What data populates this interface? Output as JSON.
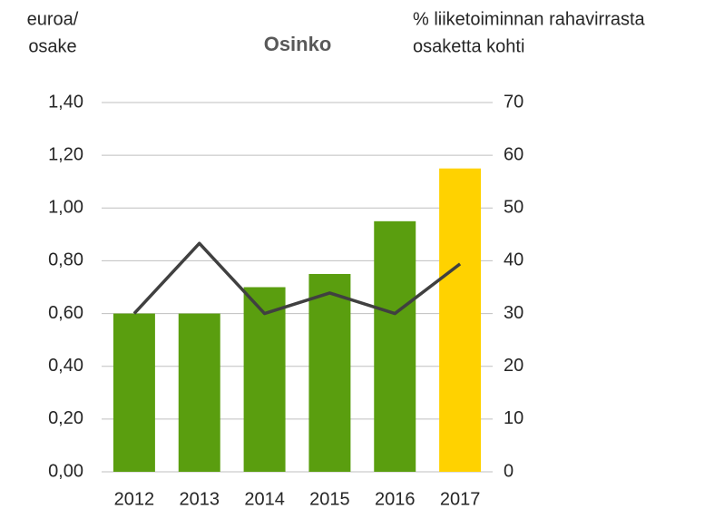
{
  "chart_data": {
    "type": "bar",
    "title": "Osinko",
    "ylabel": [
      "euroa/",
      "osake"
    ],
    "y2label": [
      "% liiketoiminnan rahavirrasta",
      "osaketta kohti"
    ],
    "categories": [
      "2012",
      "2013",
      "2014",
      "2015",
      "2016",
      "2017"
    ],
    "series": [
      {
        "type": "bar",
        "colors": [
          "#5a9e0f",
          "#5a9e0f",
          "#5a9e0f",
          "#5a9e0f",
          "#5a9e0f",
          "#ffd200"
        ],
        "values": [
          0.6,
          0.6,
          0.7,
          0.75,
          0.95,
          1.15
        ]
      },
      {
        "type": "line",
        "axis": "y2",
        "color": "#404040",
        "values": [
          30,
          43.3,
          30,
          33.9,
          30,
          39.4
        ]
      }
    ],
    "ylim": [
      0,
      1.4
    ],
    "yticks": [
      {
        "value": 0,
        "label": "0,00"
      },
      {
        "value": 0.2,
        "label": "0,20"
      },
      {
        "value": 0.4,
        "label": "0,40"
      },
      {
        "value": 0.6,
        "label": "0,60"
      },
      {
        "value": 0.8,
        "label": "0,80"
      },
      {
        "value": 1.0,
        "label": "1,00"
      },
      {
        "value": 1.2,
        "label": "1,20"
      },
      {
        "value": 1.4,
        "label": "1,40"
      }
    ],
    "y2lim": [
      0,
      70
    ],
    "y2ticks": [
      0,
      10,
      20,
      30,
      40,
      50,
      60,
      70
    ],
    "grid": true,
    "grid_color": "#bfbfbf"
  }
}
